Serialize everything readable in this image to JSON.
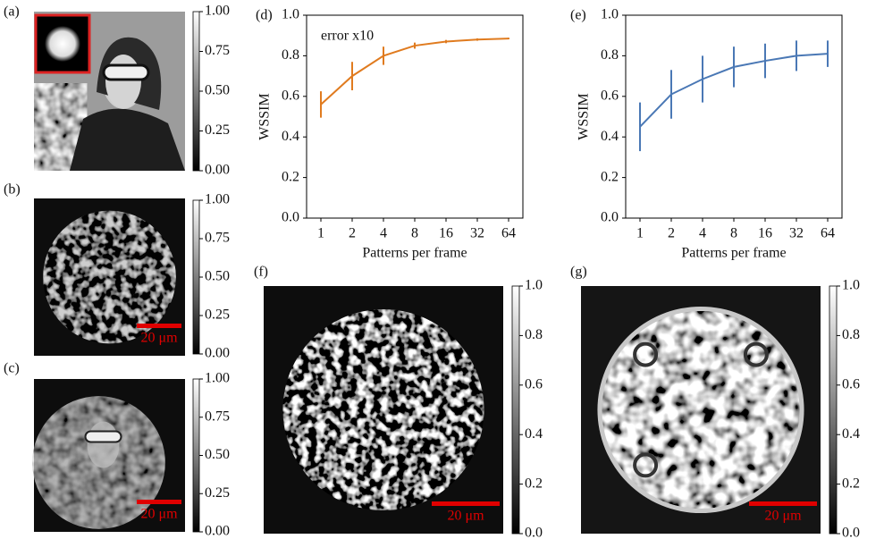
{
  "chart_data": [
    {
      "type": "image",
      "label": "(a)",
      "clim": [
        0,
        1
      ],
      "colorbar_ticks": [
        {
          "value": 0,
          "label": "0.00"
        },
        0.25,
        {
          "value": 0.5,
          "label": "0.50"
        },
        0.75,
        {
          "value": 1,
          "label": "1.00"
        }
      ]
    },
    {
      "type": "image",
      "label": "(b)",
      "clim": [
        0,
        1
      ],
      "scalebar_label": "20 μm",
      "colorbar_ticks": [
        {
          "value": 0,
          "label": "0.00"
        },
        0.25,
        {
          "value": 0.5,
          "label": "0.50"
        },
        0.75,
        {
          "value": 1,
          "label": "1.00"
        }
      ]
    },
    {
      "type": "image",
      "label": "(c)",
      "clim": [
        0,
        1
      ],
      "scalebar_label": "20 μm",
      "colorbar_ticks": [
        {
          "value": 0,
          "label": "0.00"
        },
        0.25,
        {
          "value": 0.5,
          "label": "0.50"
        },
        0.75,
        {
          "value": 1,
          "label": "1.00"
        }
      ]
    },
    {
      "type": "line",
      "label": "(d)",
      "annotation": "error x10",
      "xlabel": "Patterns per frame",
      "ylabel": "WSSIM",
      "categories": [
        "1",
        "2",
        "4",
        "8",
        "16",
        "32",
        "64"
      ],
      "series": [
        {
          "color": "#e07b1f",
          "values": [
            0.56,
            0.7,
            0.8,
            0.85,
            0.87,
            0.88,
            0.885
          ],
          "errors": [
            0.065,
            0.07,
            0.045,
            0.015,
            0.008,
            0.006,
            0.004
          ]
        }
      ],
      "ylim": [
        0,
        1
      ],
      "yticks": [
        {
          "value": 0,
          "label": "0.0"
        },
        0.2,
        0.4,
        0.6,
        0.8,
        {
          "value": 1,
          "label": "1.0"
        }
      ]
    },
    {
      "type": "line",
      "label": "(e)",
      "xlabel": "Patterns per frame",
      "ylabel": "WSSIM",
      "categories": [
        "1",
        "2",
        "4",
        "8",
        "16",
        "32",
        "64"
      ],
      "series": [
        {
          "color": "#4a78b5",
          "values": [
            0.45,
            0.61,
            0.685,
            0.745,
            0.775,
            0.8,
            0.81
          ],
          "errors": [
            0.12,
            0.12,
            0.115,
            0.1,
            0.085,
            0.075,
            0.065
          ]
        }
      ],
      "ylim": [
        0,
        1
      ],
      "yticks": [
        {
          "value": 0,
          "label": "0.0"
        },
        0.2,
        0.4,
        0.6,
        0.8,
        {
          "value": 1,
          "label": "1.0"
        }
      ]
    },
    {
      "type": "image",
      "label": "(f)",
      "clim": [
        0,
        1
      ],
      "scalebar_label": "20 μm",
      "colorbar_ticks": [
        {
          "value": 0,
          "label": "0.0"
        },
        0.2,
        0.4,
        0.6,
        0.8,
        {
          "value": 1,
          "label": "1.0"
        }
      ]
    },
    {
      "type": "image",
      "label": "(g)",
      "clim": [
        0,
        1
      ],
      "scalebar_label": "20 μm",
      "colorbar_ticks": [
        {
          "value": 0,
          "label": "0.0"
        },
        0.2,
        0.4,
        0.6,
        0.8,
        {
          "value": 1,
          "label": "1.0"
        }
      ]
    }
  ]
}
